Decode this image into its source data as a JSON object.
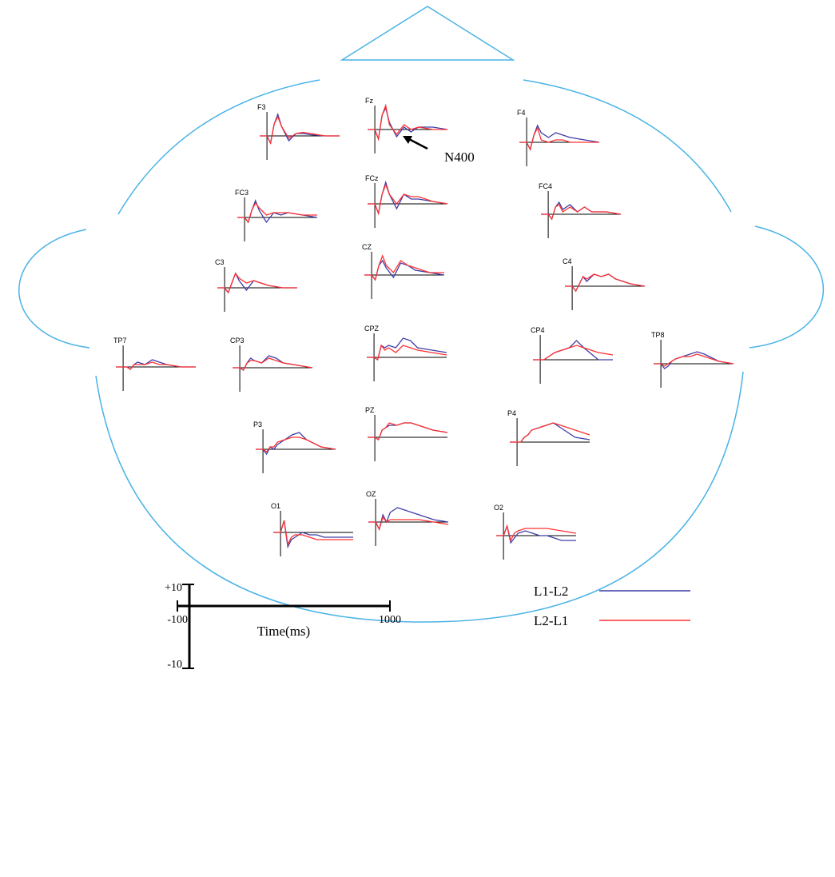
{
  "chart_data": [
    {
      "type": "line",
      "title": "F3",
      "x": [
        -100,
        0,
        50,
        100,
        150,
        200,
        300,
        400,
        500,
        600,
        800,
        1000
      ],
      "xlim": [
        -100,
        1000
      ],
      "ylim": [
        -10,
        10
      ],
      "series": [
        {
          "name": "L1-L2",
          "color": "#3d3da8",
          "values": [
            0,
            0,
            -3,
            5,
            9,
            4,
            -2,
            1,
            1,
            0.5,
            0,
            0
          ]
        },
        {
          "name": "L2-L1",
          "color": "#ff3030",
          "values": [
            0,
            0,
            -3,
            5,
            8,
            4,
            -1,
            1,
            1.5,
            1,
            0,
            0
          ]
        }
      ]
    },
    {
      "type": "line",
      "title": "Fz",
      "annotation": "N400",
      "x": [
        -100,
        0,
        50,
        100,
        150,
        200,
        300,
        400,
        500,
        600,
        800,
        1000
      ],
      "xlim": [
        -100,
        1000
      ],
      "ylim": [
        -10,
        10
      ],
      "series": [
        {
          "name": "L1-L2",
          "color": "#3d3da8",
          "values": [
            0,
            0,
            -4,
            6,
            9,
            3,
            -3,
            1,
            -1,
            1,
            1,
            0
          ]
        },
        {
          "name": "L2-L1",
          "color": "#ff3030",
          "values": [
            0,
            0,
            -4,
            6,
            10,
            2,
            -2,
            2,
            0,
            1,
            0,
            0
          ]
        }
      ]
    },
    {
      "type": "line",
      "title": "F4",
      "x": [
        -100,
        0,
        50,
        100,
        150,
        200,
        300,
        400,
        500,
        600,
        800,
        1000
      ],
      "xlim": [
        -100,
        1000
      ],
      "ylim": [
        -10,
        10
      ],
      "series": [
        {
          "name": "L1-L2",
          "color": "#3d3da8",
          "values": [
            0,
            0,
            -3,
            3,
            7,
            4,
            2,
            4,
            3,
            2,
            1,
            0
          ]
        },
        {
          "name": "L2-L1",
          "color": "#ff3030",
          "values": [
            0,
            0,
            -3,
            3,
            6,
            1,
            0,
            1,
            1,
            0,
            0,
            0
          ]
        }
      ]
    },
    {
      "type": "line",
      "title": "FC3",
      "x": [
        -100,
        0,
        50,
        100,
        150,
        200,
        300,
        400,
        500,
        600,
        800,
        1000
      ],
      "xlim": [
        -100,
        1000
      ],
      "ylim": [
        -10,
        10
      ],
      "series": [
        {
          "name": "L1-L2",
          "color": "#3d3da8",
          "values": [
            0,
            0,
            -2,
            3,
            7,
            3,
            -2,
            2,
            1,
            2,
            1,
            0
          ]
        },
        {
          "name": "L2-L1",
          "color": "#ff3030",
          "values": [
            0,
            0,
            -2,
            3,
            6,
            4,
            1,
            2,
            2,
            2,
            1,
            1
          ]
        }
      ]
    },
    {
      "type": "line",
      "title": "FCz",
      "x": [
        -100,
        0,
        50,
        100,
        150,
        200,
        300,
        400,
        500,
        600,
        800,
        1000
      ],
      "xlim": [
        -100,
        1000
      ],
      "ylim": [
        -10,
        10
      ],
      "series": [
        {
          "name": "L1-L2",
          "color": "#3d3da8",
          "values": [
            0,
            0,
            -4,
            4,
            9,
            4,
            -2,
            4,
            2,
            2,
            1,
            0
          ]
        },
        {
          "name": "L2-L1",
          "color": "#ff3030",
          "values": [
            0,
            0,
            -4,
            4,
            8,
            4,
            0,
            4,
            3,
            3,
            1,
            0
          ]
        }
      ]
    },
    {
      "type": "line",
      "title": "FC4",
      "x": [
        -100,
        0,
        50,
        100,
        150,
        200,
        300,
        400,
        500,
        600,
        800,
        1000
      ],
      "xlim": [
        -100,
        1000
      ],
      "ylim": [
        -10,
        10
      ],
      "series": [
        {
          "name": "L1-L2",
          "color": "#3d3da8",
          "values": [
            0,
            0,
            -2,
            3,
            5,
            2,
            4,
            1,
            3,
            1,
            1,
            0
          ]
        },
        {
          "name": "L2-L1",
          "color": "#ff3030",
          "values": [
            0,
            0,
            -2,
            3,
            4,
            1,
            3,
            1,
            3,
            1,
            1,
            0
          ]
        }
      ]
    },
    {
      "type": "line",
      "title": "C3",
      "x": [
        -100,
        0,
        50,
        100,
        150,
        200,
        300,
        400,
        500,
        600,
        800,
        1000
      ],
      "xlim": [
        -100,
        1000
      ],
      "ylim": [
        -10,
        10
      ],
      "series": [
        {
          "name": "L1-L2",
          "color": "#3d3da8",
          "values": [
            0,
            0,
            -2,
            2,
            6,
            3,
            -1,
            3,
            2,
            1,
            0,
            0
          ]
        },
        {
          "name": "L2-L1",
          "color": "#ff3030",
          "values": [
            0,
            0,
            -2,
            2,
            6,
            4,
            2,
            3,
            2,
            1,
            0,
            0
          ]
        }
      ]
    },
    {
      "type": "line",
      "title": "CZ",
      "x": [
        -100,
        0,
        50,
        100,
        150,
        200,
        300,
        400,
        500,
        600,
        800,
        1000
      ],
      "xlim": [
        -100,
        1000
      ],
      "ylim": [
        -10,
        10
      ],
      "series": [
        {
          "name": "L1-L2",
          "color": "#3d3da8",
          "values": [
            0,
            0,
            -2,
            4,
            6,
            3,
            -1,
            5,
            4,
            2,
            1,
            0
          ]
        },
        {
          "name": "L2-L1",
          "color": "#ff3030",
          "values": [
            0,
            0,
            -2,
            4,
            8,
            4,
            1,
            6,
            4,
            3,
            1,
            1
          ]
        }
      ]
    },
    {
      "type": "line",
      "title": "C4",
      "x": [
        -100,
        0,
        50,
        100,
        150,
        200,
        300,
        400,
        500,
        600,
        800,
        1000
      ],
      "xlim": [
        -100,
        1000
      ],
      "ylim": [
        -10,
        10
      ],
      "series": [
        {
          "name": "L1-L2",
          "color": "#3d3da8",
          "values": [
            0,
            0,
            -2,
            1,
            4,
            2,
            5,
            4,
            5,
            3,
            1,
            0
          ]
        },
        {
          "name": "L2-L1",
          "color": "#ff3030",
          "values": [
            0,
            0,
            -2,
            1,
            4,
            3,
            5,
            4,
            5,
            3,
            1,
            0
          ]
        }
      ]
    },
    {
      "type": "line",
      "title": "TP7",
      "x": [
        -100,
        0,
        50,
        100,
        150,
        200,
        300,
        400,
        500,
        600,
        800,
        1000
      ],
      "xlim": [
        -100,
        1000
      ],
      "ylim": [
        -10,
        10
      ],
      "series": [
        {
          "name": "L1-L2",
          "color": "#3d3da8",
          "values": [
            0,
            0,
            0,
            -1,
            1,
            2,
            1,
            3,
            2,
            1,
            0,
            0
          ]
        },
        {
          "name": "L2-L1",
          "color": "#ff3030",
          "values": [
            0,
            0,
            0,
            -1,
            1,
            1,
            1,
            2,
            1,
            1,
            0,
            0
          ]
        }
      ]
    },
    {
      "type": "line",
      "title": "CP3",
      "x": [
        -100,
        0,
        50,
        100,
        150,
        200,
        300,
        400,
        500,
        600,
        800,
        1000
      ],
      "xlim": [
        -100,
        1000
      ],
      "ylim": [
        -10,
        10
      ],
      "series": [
        {
          "name": "L1-L2",
          "color": "#3d3da8",
          "values": [
            0,
            0,
            -1,
            2,
            4,
            3,
            2,
            5,
            4,
            2,
            1,
            0
          ]
        },
        {
          "name": "L2-L1",
          "color": "#ff3030",
          "values": [
            0,
            0,
            -1,
            2,
            3,
            3,
            2,
            4,
            3,
            2,
            1,
            0
          ]
        }
      ]
    },
    {
      "type": "line",
      "title": "CPZ",
      "x": [
        -100,
        0,
        50,
        100,
        150,
        200,
        300,
        400,
        500,
        600,
        800,
        1000
      ],
      "xlim": [
        -100,
        1000
      ],
      "ylim": [
        -10,
        10
      ],
      "series": [
        {
          "name": "L1-L2",
          "color": "#3d3da8",
          "values": [
            0,
            0,
            -1,
            5,
            4,
            5,
            4,
            8,
            7,
            4,
            3,
            2
          ]
        },
        {
          "name": "L2-L1",
          "color": "#ff3030",
          "values": [
            0,
            0,
            -1,
            5,
            3,
            4,
            2,
            5,
            4,
            3,
            2,
            1
          ]
        }
      ]
    },
    {
      "type": "line",
      "title": "CP4",
      "x": [
        -100,
        0,
        50,
        100,
        150,
        200,
        300,
        400,
        500,
        600,
        800,
        1000
      ],
      "xlim": [
        -100,
        1000
      ],
      "ylim": [
        -10,
        10
      ],
      "series": [
        {
          "name": "L1-L2",
          "color": "#3d3da8",
          "values": [
            0,
            0,
            0,
            1,
            2,
            3,
            4,
            5,
            8,
            5,
            0,
            0
          ]
        },
        {
          "name": "L2-L1",
          "color": "#ff3030",
          "values": [
            0,
            0,
            0,
            1,
            2,
            3,
            4,
            5,
            6,
            5,
            3,
            2
          ]
        }
      ]
    },
    {
      "type": "line",
      "title": "TP8",
      "x": [
        -100,
        0,
        50,
        100,
        150,
        200,
        300,
        400,
        500,
        600,
        800,
        1000
      ],
      "xlim": [
        -100,
        1000
      ],
      "ylim": [
        -10,
        10
      ],
      "series": [
        {
          "name": "L1-L2",
          "color": "#3d3da8",
          "values": [
            0,
            0,
            -2,
            -1,
            1,
            2,
            3,
            4,
            5,
            4,
            1,
            0
          ]
        },
        {
          "name": "L2-L1",
          "color": "#ff3030",
          "values": [
            0,
            0,
            -1,
            0,
            1,
            2,
            3,
            3,
            4,
            3,
            1,
            0
          ]
        }
      ]
    },
    {
      "type": "line",
      "title": "P3",
      "x": [
        -100,
        0,
        50,
        100,
        150,
        200,
        300,
        400,
        500,
        600,
        800,
        1000
      ],
      "xlim": [
        -100,
        1000
      ],
      "ylim": [
        -10,
        10
      ],
      "series": [
        {
          "name": "L1-L2",
          "color": "#3d3da8",
          "values": [
            0,
            0,
            -2,
            1,
            0,
            2,
            4,
            6,
            7,
            4,
            1,
            0
          ]
        },
        {
          "name": "L2-L1",
          "color": "#ff3030",
          "values": [
            0,
            0,
            -1,
            1,
            1,
            3,
            4,
            5,
            5,
            4,
            1,
            0
          ]
        }
      ]
    },
    {
      "type": "line",
      "title": "PZ",
      "x": [
        -100,
        0,
        50,
        100,
        150,
        200,
        300,
        400,
        500,
        600,
        800,
        1000
      ],
      "xlim": [
        -100,
        1000
      ],
      "ylim": [
        -10,
        10
      ],
      "series": [
        {
          "name": "L1-L2",
          "color": "#3d3da8",
          "values": [
            0,
            0,
            -1,
            3,
            4,
            5,
            5,
            6,
            6,
            5,
            3,
            2
          ]
        },
        {
          "name": "L2-L1",
          "color": "#ff3030",
          "values": [
            0,
            0,
            -1,
            3,
            4,
            6,
            5,
            6,
            6,
            5,
            3,
            2
          ]
        }
      ]
    },
    {
      "type": "line",
      "title": "P4",
      "x": [
        -100,
        0,
        50,
        100,
        150,
        200,
        300,
        400,
        500,
        600,
        800,
        1000
      ],
      "xlim": [
        -100,
        1000
      ],
      "ylim": [
        -10,
        10
      ],
      "series": [
        {
          "name": "L1-L2",
          "color": "#3d3da8",
          "values": [
            0,
            0,
            0,
            2,
            3,
            5,
            6,
            7,
            8,
            6,
            2,
            1
          ]
        },
        {
          "name": "L2-L1",
          "color": "#ff3030",
          "values": [
            0,
            0,
            0,
            2,
            3,
            5,
            6,
            7,
            8,
            7,
            5,
            3
          ]
        }
      ]
    },
    {
      "type": "line",
      "title": "O1",
      "x": [
        -100,
        0,
        50,
        100,
        150,
        200,
        300,
        400,
        500,
        600,
        800,
        1000
      ],
      "xlim": [
        -100,
        1000
      ],
      "ylim": [
        -10,
        10
      ],
      "series": [
        {
          "name": "L1-L2",
          "color": "#3d3da8",
          "values": [
            0,
            0,
            5,
            -6,
            -3,
            -2,
            0,
            -1,
            -1,
            -2,
            -2,
            -2
          ]
        },
        {
          "name": "L2-L1",
          "color": "#ff3030",
          "values": [
            0,
            0,
            5,
            -5,
            -2,
            -1,
            -1,
            -2,
            -3,
            -3,
            -3,
            -3
          ]
        }
      ]
    },
    {
      "type": "line",
      "title": "OZ",
      "x": [
        -100,
        0,
        50,
        100,
        150,
        200,
        300,
        400,
        500,
        600,
        800,
        1000
      ],
      "xlim": [
        -100,
        1000
      ],
      "ylim": [
        -10,
        10
      ],
      "series": [
        {
          "name": "L1-L2",
          "color": "#3d3da8",
          "values": [
            0,
            0,
            -3,
            3,
            0,
            4,
            6,
            5,
            4,
            3,
            1,
            0
          ]
        },
        {
          "name": "L2-L1",
          "color": "#ff3030",
          "values": [
            0,
            0,
            -3,
            2,
            0,
            1,
            1,
            1,
            1,
            1,
            0,
            -1
          ]
        }
      ]
    },
    {
      "type": "line",
      "title": "O2",
      "x": [
        -100,
        0,
        50,
        100,
        150,
        200,
        300,
        400,
        500,
        600,
        800,
        1000
      ],
      "xlim": [
        -100,
        1000
      ],
      "ylim": [
        -10,
        10
      ],
      "series": [
        {
          "name": "L1-L2",
          "color": "#3d3da8",
          "values": [
            0,
            0,
            4,
            -3,
            -1,
            1,
            2,
            1,
            0,
            0,
            -2,
            -2
          ]
        },
        {
          "name": "L2-L1",
          "color": "#ff3030",
          "values": [
            0,
            0,
            4,
            -2,
            1,
            2,
            3,
            3,
            3,
            3,
            2,
            1
          ]
        }
      ]
    }
  ],
  "scale_bar": {
    "y_top": "+10",
    "y_bottom": "-10",
    "x_left": "-100",
    "x_right": "1000",
    "x_label": "Time(ms)"
  }
}
